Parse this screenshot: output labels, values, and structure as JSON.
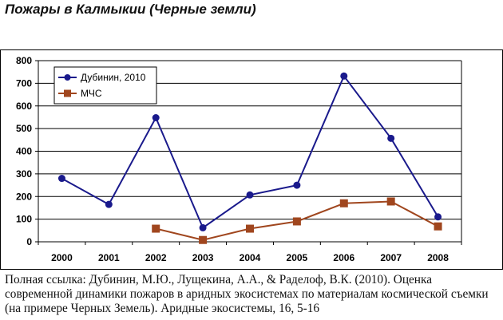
{
  "title": "Пожары в Калмыкии (Черные земли)",
  "caption": "Полная ссылка: Дубинин, М.Ю., Лущекина, А.А., & Раделоф, В.К. (2010). Оценка современной динамики пожаров в аридных экосистемах по материалам космической съемки (на примере Черных Земель). Аридные экосистемы, 16, 5-16",
  "chart_data": {
    "type": "line",
    "title": "",
    "xlabel": "",
    "ylabel": "",
    "categories": [
      "2000",
      "2001",
      "2002",
      "2003",
      "2004",
      "2005",
      "2006",
      "2007",
      "2008"
    ],
    "ylim": [
      0,
      800
    ],
    "yticks": [
      0,
      100,
      200,
      300,
      400,
      500,
      600,
      700,
      800
    ],
    "grid": "horizontal",
    "legend_position": "top-left",
    "series": [
      {
        "name": "Дубинин, 2010",
        "color": "#1a1a8c",
        "marker": "circle",
        "values": [
          280,
          165,
          548,
          62,
          207,
          250,
          732,
          457,
          110
        ]
      },
      {
        "name": "МЧС",
        "color": "#a0461e",
        "marker": "square",
        "values": [
          null,
          null,
          58,
          8,
          58,
          90,
          170,
          178,
          68
        ]
      }
    ]
  }
}
